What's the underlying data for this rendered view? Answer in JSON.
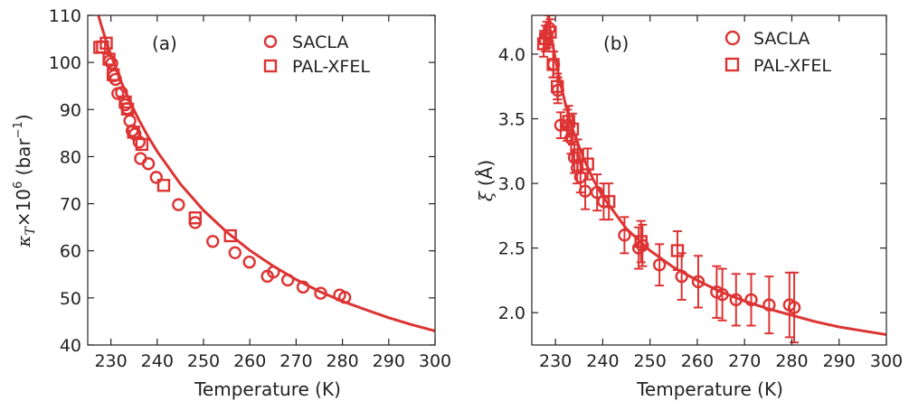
{
  "colors": {
    "series": "#dd3333",
    "axis": "#222222"
  },
  "chart_data": [
    {
      "type": "scatter",
      "panel_label": "(a)",
      "xlabel": "Temperature (K)",
      "ylabel_parts": {
        "symbol": "κ",
        "sub": "T",
        "times": "×10",
        "exp": "6",
        "unit_open": " (bar",
        "unit_exp": "−1",
        "unit_close": ")"
      },
      "xlim": [
        225,
        300
      ],
      "ylim": [
        40,
        110
      ],
      "xticks": [
        230,
        240,
        250,
        260,
        270,
        280,
        290,
        300
      ],
      "yticks": [
        40,
        50,
        60,
        70,
        80,
        90,
        100,
        110
      ],
      "legend": {
        "position": "top-right",
        "entries": [
          "SACLA",
          "PAL-XFEL"
        ]
      },
      "series": [
        {
          "name": "SACLA",
          "marker": "circle",
          "points": [
            [
              229.7,
              100.3
            ],
            [
              230.2,
              99.8
            ],
            [
              230.7,
              97.2
            ],
            [
              231.0,
              96.4
            ],
            [
              231.5,
              93.4
            ],
            [
              232.3,
              93.6
            ],
            [
              233.1,
              91.0
            ],
            [
              233.5,
              90.2
            ],
            [
              234.1,
              87.6
            ],
            [
              234.6,
              85.5
            ],
            [
              235.2,
              84.8
            ],
            [
              236.1,
              83.1
            ],
            [
              236.4,
              79.6
            ],
            [
              238.1,
              78.5
            ],
            [
              239.8,
              75.6
            ],
            [
              244.6,
              69.8
            ],
            [
              248.2,
              66.0
            ],
            [
              252.0,
              62.0
            ],
            [
              256.8,
              59.6
            ],
            [
              259.9,
              57.6
            ],
            [
              263.8,
              54.6
            ],
            [
              265.1,
              55.5
            ],
            [
              268.2,
              53.8
            ],
            [
              271.5,
              52.3
            ],
            [
              275.3,
              51.0
            ],
            [
              279.4,
              50.6
            ],
            [
              280.5,
              50.1
            ]
          ]
        },
        {
          "name": "PAL-XFEL",
          "marker": "square",
          "points": [
            [
              227.6,
              103.2
            ],
            [
              228.2,
              103.3
            ],
            [
              229.0,
              104.1
            ],
            [
              229.6,
              100.7
            ],
            [
              230.5,
              97.4
            ],
            [
              233.1,
              91.6
            ],
            [
              233.6,
              90.1
            ],
            [
              234.9,
              85.2
            ],
            [
              236.7,
              82.6
            ],
            [
              241.4,
              73.9
            ],
            [
              248.2,
              67.0
            ],
            [
              255.8,
              63.2
            ]
          ]
        },
        {
          "name": "fit",
          "type": "line",
          "points": [
            [
              227.3,
              110
            ],
            [
              228,
              107.6
            ],
            [
              229,
              104.5
            ],
            [
              230,
              101.6
            ],
            [
              232,
              96.4
            ],
            [
              234,
              91.9
            ],
            [
              236,
              87.9
            ],
            [
              238,
              84.3
            ],
            [
              240,
              81.1
            ],
            [
              245,
              74.2
            ],
            [
              250,
              68.6
            ],
            [
              255,
              64.0
            ],
            [
              260,
              60.1
            ],
            [
              265,
              56.8
            ],
            [
              270,
              53.9
            ],
            [
              275,
              51.4
            ],
            [
              280,
              49.3
            ],
            [
              285,
              47.5
            ],
            [
              290,
              45.8
            ],
            [
              295,
              44.3
            ],
            [
              300,
              43.0
            ]
          ]
        }
      ]
    },
    {
      "type": "scatter",
      "panel_label": "(b)",
      "xlabel": "Temperature (K)",
      "ylabel_parts": {
        "symbol": "ξ",
        "unit": "(Å)"
      },
      "xlim": [
        225,
        300
      ],
      "ylim": [
        1.75,
        4.3
      ],
      "xticks": [
        230,
        240,
        250,
        260,
        270,
        280,
        290,
        300
      ],
      "yticks": [
        2.0,
        2.5,
        3.0,
        3.5,
        4.0
      ],
      "ytick_labels": [
        "2.0",
        "2.5",
        "3.0",
        "3.5",
        "4.0"
      ],
      "legend": {
        "position": "top-right",
        "entries": [
          "SACLA",
          "PAL-XFEL"
        ]
      },
      "series": [
        {
          "name": "SACLA",
          "marker": "circle",
          "points": [
            [
              228.2,
              4.15,
              0.1
            ],
            [
              228.7,
              4.2,
              0.1
            ],
            [
              229.6,
              3.92,
              0.1
            ],
            [
              230.5,
              3.72,
              0.1
            ],
            [
              231.1,
              3.45,
              0.1
            ],
            [
              232.5,
              3.45,
              0.12
            ],
            [
              233.3,
              3.35,
              0.12
            ],
            [
              234.0,
              3.2,
              0.12
            ],
            [
              234.6,
              3.12,
              0.12
            ],
            [
              235.3,
              3.05,
              0.12
            ],
            [
              236.3,
              2.94,
              0.14
            ],
            [
              238.8,
              2.93,
              0.14
            ],
            [
              240.2,
              2.86,
              0.14
            ],
            [
              244.6,
              2.6,
              0.14
            ],
            [
              247.6,
              2.5,
              0.16
            ],
            [
              248.4,
              2.52,
              0.16
            ],
            [
              252.0,
              2.37,
              0.16
            ],
            [
              256.7,
              2.28,
              0.18
            ],
            [
              260.2,
              2.24,
              0.2
            ],
            [
              264.1,
              2.16,
              0.2
            ],
            [
              265.3,
              2.14,
              0.2
            ],
            [
              268.2,
              2.1,
              0.2
            ],
            [
              271.4,
              2.1,
              0.2
            ],
            [
              275.2,
              2.06,
              0.22
            ],
            [
              279.5,
              2.06,
              0.25
            ],
            [
              280.5,
              2.04,
              0.27
            ]
          ]
        },
        {
          "name": "PAL-XFEL",
          "marker": "square",
          "points": [
            [
              227.5,
              4.08,
              0.1
            ],
            [
              227.9,
              4.12,
              0.1
            ],
            [
              228.9,
              4.17,
              0.1
            ],
            [
              229.5,
              3.92,
              0.1
            ],
            [
              230.4,
              3.75,
              0.1
            ],
            [
              232.8,
              3.48,
              0.12
            ],
            [
              233.6,
              3.42,
              0.12
            ],
            [
              234.7,
              3.22,
              0.12
            ],
            [
              236.8,
              3.15,
              0.12
            ],
            [
              241.3,
              2.86,
              0.14
            ],
            [
              248.1,
              2.55,
              0.16
            ],
            [
              255.8,
              2.48,
              0.15
            ]
          ]
        },
        {
          "name": "fit",
          "type": "line",
          "points": [
            [
              228.4,
              4.3
            ],
            [
              229,
              4.16
            ],
            [
              230,
              3.96
            ],
            [
              231,
              3.78
            ],
            [
              232,
              3.63
            ],
            [
              233,
              3.5
            ],
            [
              234,
              3.38
            ],
            [
              236,
              3.19
            ],
            [
              238,
              3.03
            ],
            [
              240,
              2.9
            ],
            [
              245,
              2.65
            ],
            [
              250,
              2.48
            ],
            [
              255,
              2.35
            ],
            [
              260,
              2.25
            ],
            [
              265,
              2.16
            ],
            [
              270,
              2.09
            ],
            [
              275,
              2.03
            ],
            [
              280,
              1.98
            ],
            [
              285,
              1.93
            ],
            [
              290,
              1.89
            ],
            [
              295,
              1.86
            ],
            [
              300,
              1.83
            ]
          ]
        }
      ]
    }
  ]
}
